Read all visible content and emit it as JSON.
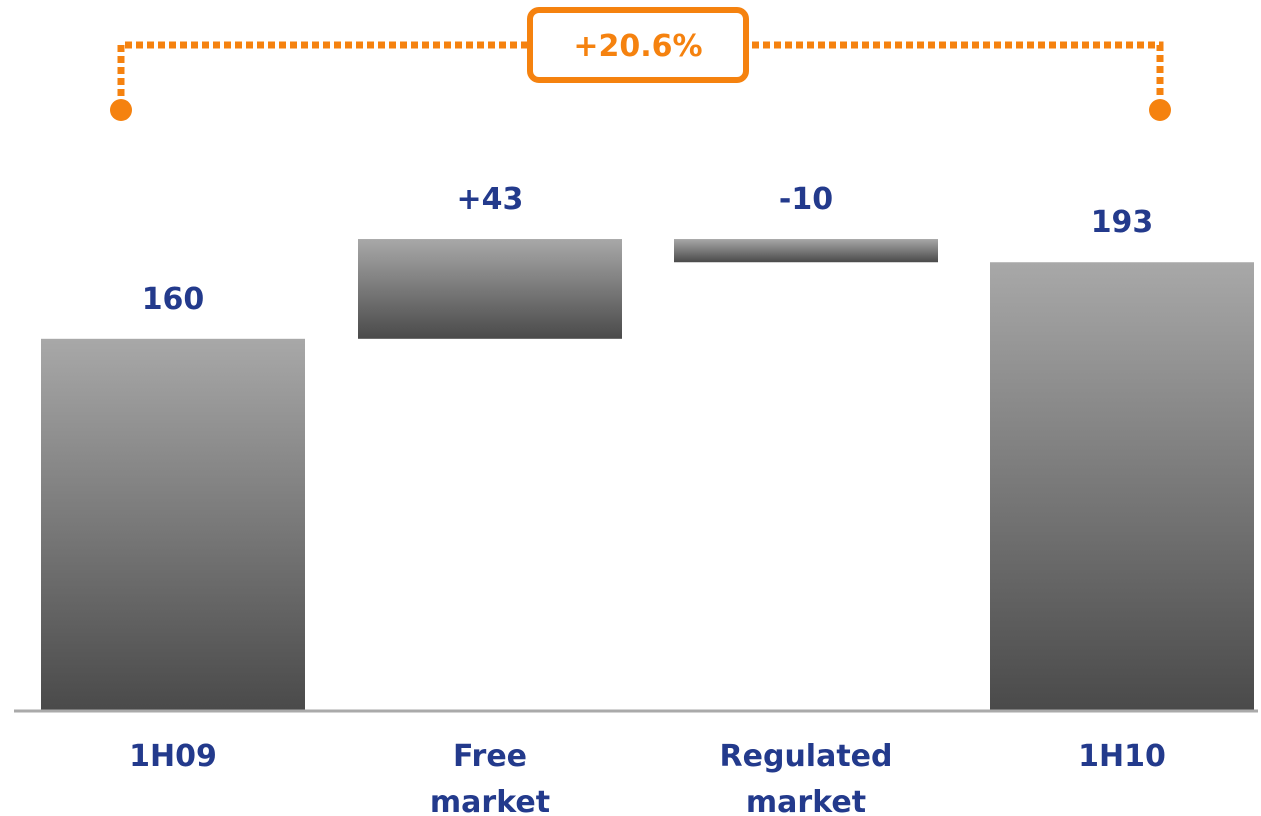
{
  "chart_data": {
    "type": "bar",
    "subtype": "waterfall",
    "categories": [
      "1H09",
      "Free market",
      "Regulated market",
      "1H10"
    ],
    "category_lines": [
      [
        "1H09"
      ],
      [
        "Free",
        "market"
      ],
      [
        "Regulated",
        "market"
      ],
      [
        "1H10"
      ]
    ],
    "values": [
      160,
      43,
      -10,
      193
    ],
    "value_labels": [
      "160",
      "+43",
      "-10",
      "193"
    ],
    "bar_kinds": [
      "total",
      "delta",
      "delta",
      "total"
    ],
    "ylim": [
      0,
      220
    ],
    "grid": false,
    "legend": "none",
    "title": "",
    "xlabel": "",
    "ylabel": "",
    "annotation": {
      "text": "+20.6%",
      "from_category": "1H09",
      "to_category": "1H10"
    }
  },
  "colors": {
    "label_text": "#233A8C",
    "accent": "#F5820F",
    "bar_top": "#A8A8A8",
    "bar_bottom": "#4A4A4A",
    "axis": "#AAAAAA"
  }
}
